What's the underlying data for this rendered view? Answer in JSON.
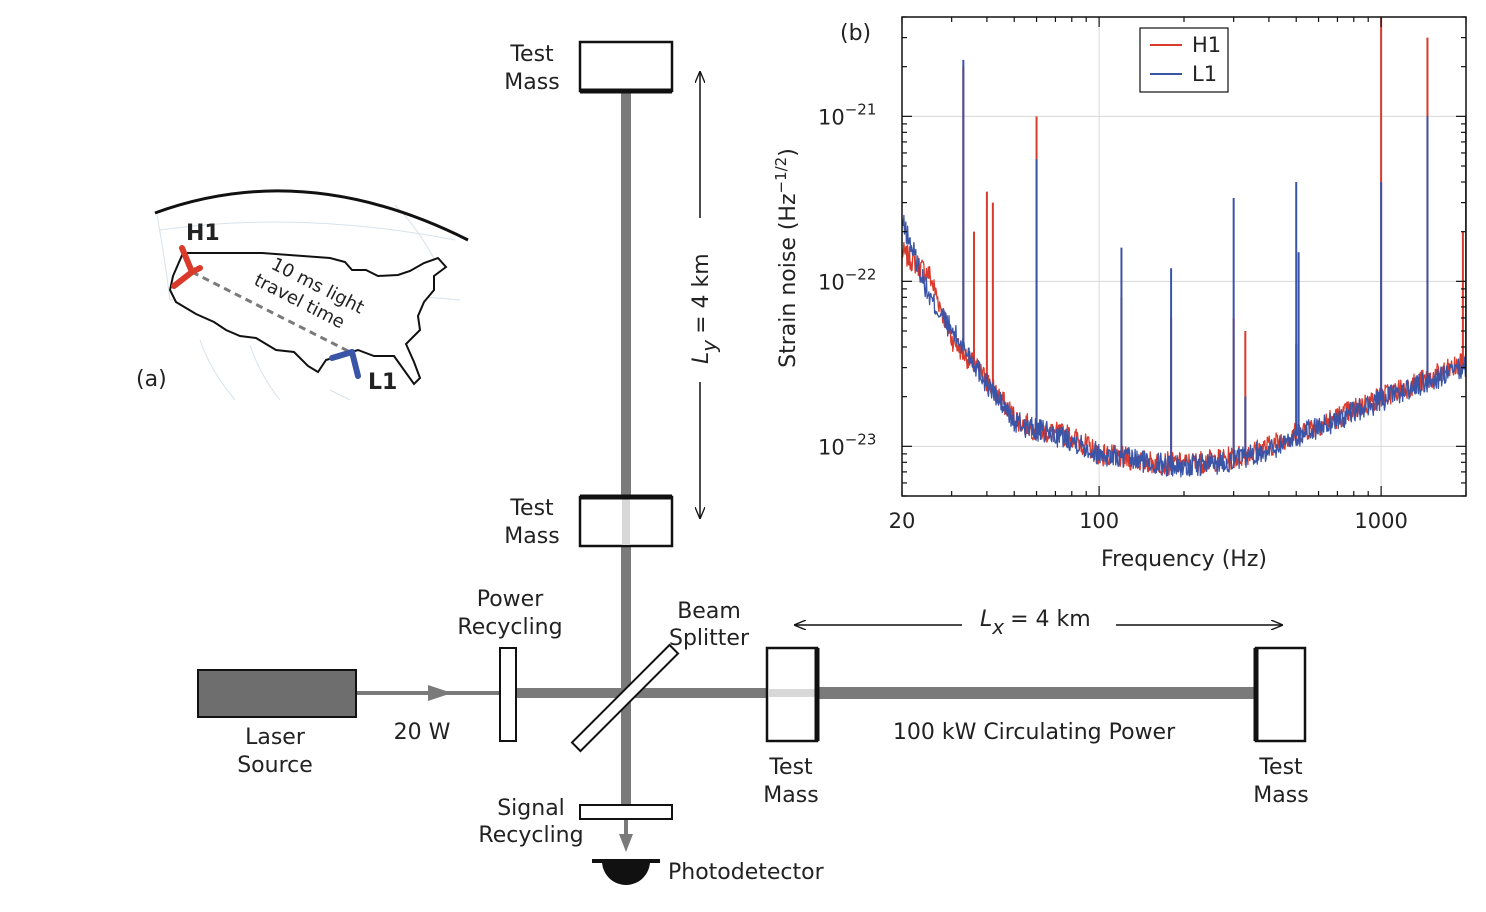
{
  "panel_a": {
    "label": "(a)",
    "site_h1": "H1",
    "site_l1": "L1",
    "travel_line1": "10 ms light",
    "travel_line2": "travel time",
    "colors": {
      "h1": "#d93a2b",
      "l1": "#3a55a8",
      "outline": "#111111"
    }
  },
  "interferometer": {
    "laser": {
      "line1": "Laser",
      "line2": "Source"
    },
    "input_power": "20 W",
    "power_recycling": {
      "line1": "Power",
      "line2": "Recycling"
    },
    "beam_splitter": {
      "line1": "Beam",
      "line2": "Splitter"
    },
    "signal_recycling": {
      "line1": "Signal",
      "line2": "Recycling"
    },
    "photodetector": "Photodetector",
    "test_mass_top": {
      "line1": "Test",
      "line2": "Mass"
    },
    "test_mass_ymid": {
      "line1": "Test",
      "line2": "Mass"
    },
    "test_mass_xnear": {
      "line1": "Test",
      "line2": "Mass"
    },
    "test_mass_xfar": {
      "line1": "Test",
      "line2": "Mass"
    },
    "circulating_power": "100 kW Circulating Power",
    "arm_x": {
      "symbol": "L",
      "subscript": "x",
      "value": "= 4 km"
    },
    "arm_y": {
      "symbol": "L",
      "subscript": "y",
      "value": "= 4 km"
    },
    "colors": {
      "beam": "#7a7a7a",
      "laser_box": "#6e6e6e"
    }
  },
  "chart_data": {
    "type": "line",
    "panel_label": "(b)",
    "xlabel": "Frequency (Hz)",
    "ylabel": {
      "text": "Strain noise (Hz",
      "sup": "−1/2",
      "close": ")"
    },
    "xscale": "log",
    "yscale": "log",
    "xlim": [
      20,
      2000
    ],
    "ylim": [
      5e-24,
      4e-21
    ],
    "xticks": [
      {
        "value": 20,
        "label": "20"
      },
      {
        "value": 100,
        "label": "100"
      },
      {
        "value": 1000,
        "label": "1000"
      }
    ],
    "yticks": [
      {
        "value": 1e-23,
        "base": "10",
        "exp": "−23"
      },
      {
        "value": 1e-22,
        "base": "10",
        "exp": "−22"
      },
      {
        "value": 1e-21,
        "base": "10",
        "exp": "−21"
      }
    ],
    "grid": true,
    "legend_position": "top-right",
    "series": [
      {
        "name": "H1",
        "color": "#d93a2b",
        "baseline": [
          [
            20,
            1.5e-22
          ],
          [
            25,
            1.1e-22
          ],
          [
            30,
            4.5e-23
          ],
          [
            40,
            2.5e-23
          ],
          [
            50,
            1.5e-23
          ],
          [
            60,
            1.25e-23
          ],
          [
            70,
            1.2e-23
          ],
          [
            80,
            1.15e-23
          ],
          [
            100,
            9e-24
          ],
          [
            150,
            8e-24
          ],
          [
            200,
            7.8e-24
          ],
          [
            300,
            8.5e-24
          ],
          [
            400,
            1e-23
          ],
          [
            500,
            1.2e-23
          ],
          [
            700,
            1.5e-23
          ],
          [
            1000,
            2e-23
          ],
          [
            1500,
            2.6e-23
          ],
          [
            2000,
            3.2e-23
          ]
        ],
        "peaks": [
          [
            33,
            2e-21
          ],
          [
            36,
            2e-22
          ],
          [
            40,
            3.5e-22
          ],
          [
            42,
            3e-22
          ],
          [
            60,
            1e-21
          ],
          [
            120,
            8e-23
          ],
          [
            180,
            6e-23
          ],
          [
            300,
            6e-23
          ],
          [
            330,
            5e-23
          ],
          [
            500,
            4.2e-23
          ],
          [
            1000,
            4e-21
          ],
          [
            1460,
            3e-21
          ],
          [
            1950,
            2e-22
          ]
        ]
      },
      {
        "name": "L1",
        "color": "#3a55a8",
        "baseline": [
          [
            20,
            2.3e-22
          ],
          [
            22,
            1.5e-22
          ],
          [
            25,
            8e-23
          ],
          [
            30,
            5e-23
          ],
          [
            35,
            3.5e-23
          ],
          [
            40,
            2.4e-23
          ],
          [
            50,
            1.4e-23
          ],
          [
            60,
            1.25e-23
          ],
          [
            80,
            1.1e-23
          ],
          [
            100,
            9e-24
          ],
          [
            150,
            8e-24
          ],
          [
            200,
            7.5e-24
          ],
          [
            300,
            8.2e-24
          ],
          [
            400,
            9.5e-24
          ],
          [
            500,
            1.15e-23
          ],
          [
            700,
            1.45e-23
          ],
          [
            1000,
            1.9e-23
          ],
          [
            1500,
            2.5e-23
          ],
          [
            2000,
            3e-23
          ]
        ],
        "peaks": [
          [
            33,
            2.2e-21
          ],
          [
            60,
            5.5e-22
          ],
          [
            120,
            1.6e-22
          ],
          [
            180,
            1.2e-22
          ],
          [
            300,
            3.2e-22
          ],
          [
            330,
            2e-23
          ],
          [
            500,
            4e-22
          ],
          [
            510,
            1.5e-22
          ],
          [
            1000,
            4e-22
          ],
          [
            1460,
            1e-21
          ],
          [
            2000,
            1e-21
          ]
        ]
      }
    ]
  }
}
